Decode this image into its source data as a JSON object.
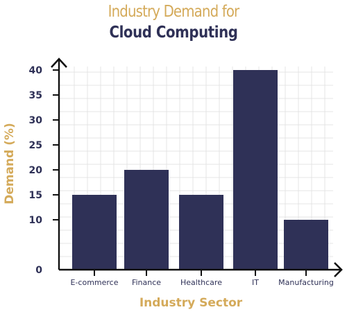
{
  "chart_data": {
    "type": "bar",
    "title_line1": "Industry Demand for",
    "title_line2": "Cloud Computing",
    "xlabel": "Industry Sector",
    "ylabel": "Demand (%)",
    "categories": [
      "E-commerce",
      "Finance",
      "Healthcare",
      "IT",
      "Manufacturing"
    ],
    "values": [
      15,
      20,
      15,
      40,
      10
    ],
    "yticks": [
      0,
      10,
      15,
      20,
      25,
      30,
      35,
      40
    ],
    "ylim": [
      0,
      45
    ],
    "grid": true,
    "bar_color": "#2f3157",
    "title_accent_color": "#d4aa5a",
    "title_main_color": "#2f3157"
  }
}
